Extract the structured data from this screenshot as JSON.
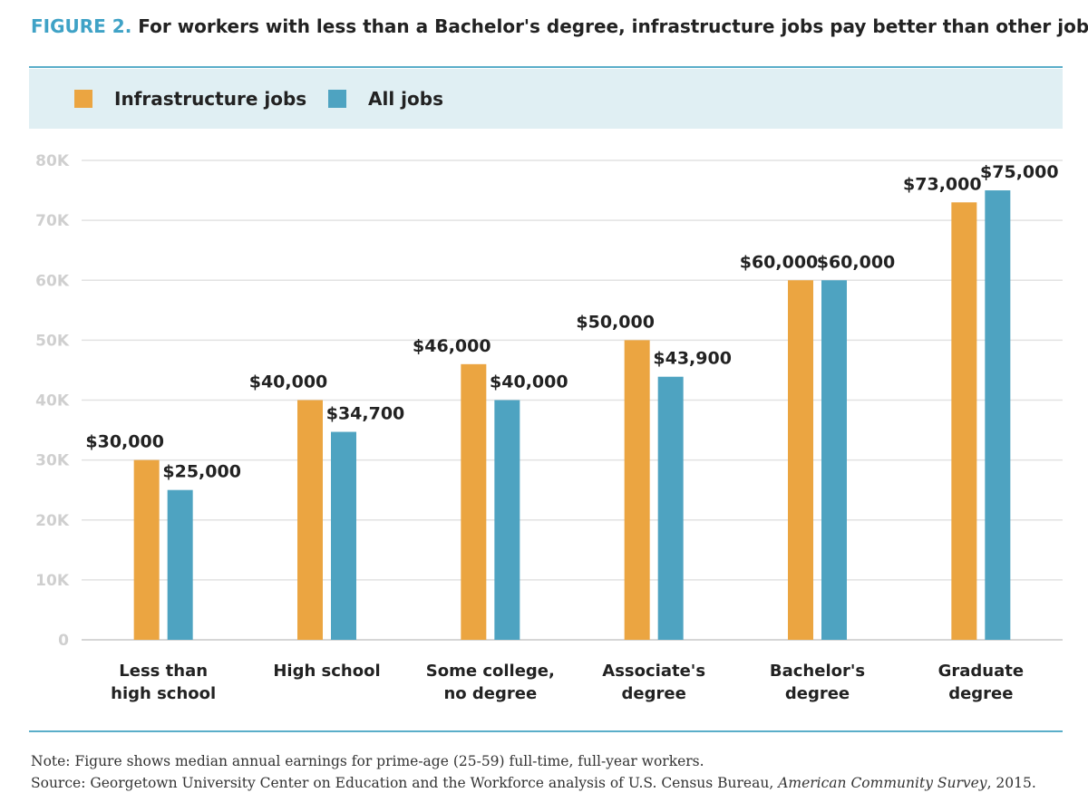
{
  "title": {
    "figure_label": "FIGURE 2.",
    "text": "For workers with less than a Bachelor's degree, infrastructure jobs pay better than other jobs."
  },
  "colors": {
    "infrastructure": "#eba541",
    "all_jobs": "#4ea3c1",
    "accent": "#3fa2c6",
    "legend_band": "#e0eff3"
  },
  "chart_data": {
    "type": "bar",
    "title": "For workers with less than a Bachelor's degree, infrastructure jobs pay better than other jobs.",
    "categories": [
      [
        "Less than",
        "high school"
      ],
      [
        "High school"
      ],
      [
        "Some college,",
        "no degree"
      ],
      [
        "Associate's",
        "degree"
      ],
      [
        "Bachelor's",
        "degree"
      ],
      [
        "Graduate",
        "degree"
      ]
    ],
    "series": [
      {
        "name": "Infrastructure jobs",
        "values": [
          30000,
          40000,
          46000,
          50000,
          60000,
          73000
        ],
        "labels": [
          "$30,000",
          "$40,000",
          "$46,000",
          "$50,000",
          "$60,000",
          "$73,000"
        ]
      },
      {
        "name": "All jobs",
        "values": [
          25000,
          34700,
          40000,
          43900,
          60000,
          75000
        ],
        "labels": [
          "$25,000",
          "$34,700",
          "$40,000",
          "$43,900",
          "$60,000",
          "$75,000"
        ]
      }
    ],
    "ylim": [
      0,
      80000
    ],
    "yticks": [
      0,
      10000,
      20000,
      30000,
      40000,
      50000,
      60000,
      70000,
      80000
    ],
    "ytick_labels": [
      "0",
      "10K",
      "20K",
      "30K",
      "40K",
      "50K",
      "60K",
      "70K",
      "80K"
    ],
    "xlabel": "",
    "ylabel": "",
    "grid": true,
    "legend": "top"
  },
  "note": {
    "line1": "Note: Figure shows median annual earnings for prime-age (25-59) full-time, full-year workers.",
    "line2_prefix": "Source: Georgetown University Center on Education and the Workforce analysis of U.S. Census Bureau, ",
    "line2_italic": "American Community Survey",
    "line2_suffix": ", 2015."
  }
}
